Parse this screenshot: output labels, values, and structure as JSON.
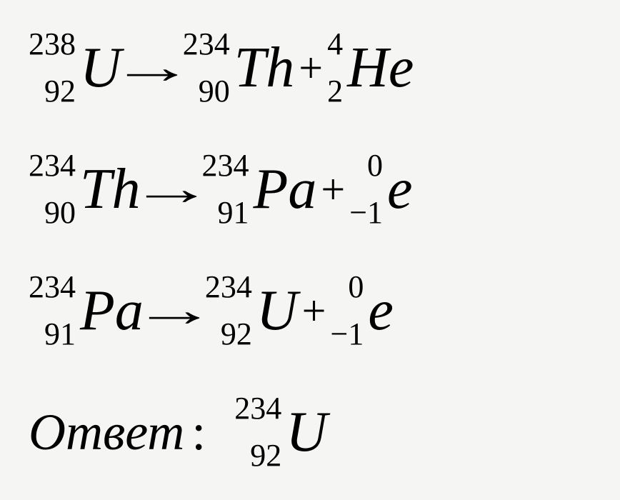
{
  "equations": [
    {
      "lhs": {
        "mass": "238",
        "atomic": "92",
        "symbol": "U"
      },
      "rhs": [
        {
          "mass": "234",
          "atomic": "90",
          "symbol": "Th"
        },
        {
          "mass": "4",
          "atomic": "2",
          "symbol": "He"
        }
      ]
    },
    {
      "lhs": {
        "mass": "234",
        "atomic": "90",
        "symbol": "Th"
      },
      "rhs": [
        {
          "mass": "234",
          "atomic": "91",
          "symbol": "Pa"
        },
        {
          "mass": "0",
          "atomic": "−1",
          "symbol": "e"
        }
      ]
    },
    {
      "lhs": {
        "mass": "234",
        "atomic": "91",
        "symbol": "Pa"
      },
      "rhs": [
        {
          "mass": "234",
          "atomic": "92",
          "symbol": "U"
        },
        {
          "mass": "0",
          "atomic": "−1",
          "symbol": "e"
        }
      ]
    }
  ],
  "answer": {
    "label": "Ответ",
    "colon": ":",
    "nuclide": {
      "mass": "234",
      "atomic": "92",
      "symbol": "U"
    }
  },
  "style": {
    "background_color": "#f5f5f3",
    "text_color": "#000000",
    "font_family": "Times New Roman",
    "font_style": "italic",
    "symbol_fontsize": 80,
    "script_fontsize": 44,
    "answer_fontsize": 72
  }
}
